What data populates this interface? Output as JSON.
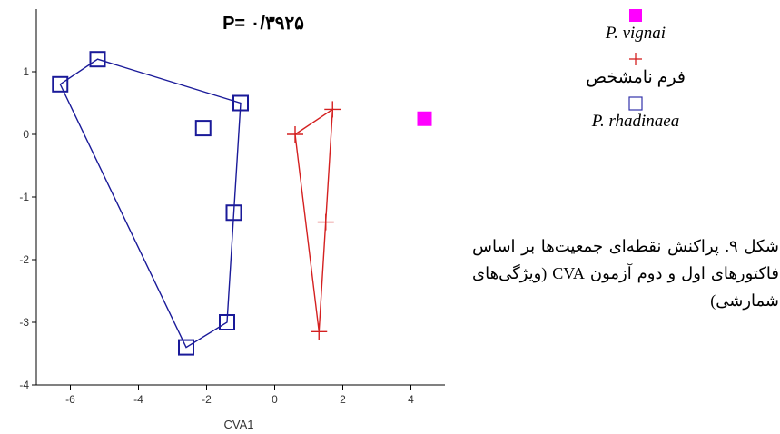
{
  "chart_data": {
    "type": "scatter",
    "title": "P= ۰/۳۹۲۵",
    "xlabel": "CVA1",
    "ylabel": "",
    "xlim": [
      -7,
      5
    ],
    "ylim": [
      -4,
      2
    ],
    "x_ticks": [
      -6,
      -4,
      -2,
      0,
      2,
      4
    ],
    "x_tick_labels": [
      "-6",
      "-4",
      "-2",
      "0",
      "2",
      "4"
    ],
    "y_ticks": [
      -4,
      -3,
      -2,
      -1,
      0,
      1
    ],
    "y_tick_labels": [
      "-4",
      "-3",
      "-2",
      "-1",
      "0",
      "1"
    ],
    "grid": false,
    "legend_position": "right",
    "series": [
      {
        "name": "P. vignai",
        "marker": "filled-square",
        "color": "#ff00ff",
        "points": [
          [
            4.4,
            0.25
          ]
        ],
        "hull": []
      },
      {
        "name": "فرم نامشخص",
        "marker": "plus",
        "color": "#d42020",
        "points": [
          [
            0.6,
            0.0
          ],
          [
            1.7,
            0.4
          ],
          [
            1.5,
            -1.4
          ],
          [
            1.3,
            -3.15
          ]
        ],
        "hull": [
          [
            0.6,
            0.0
          ],
          [
            1.7,
            0.4
          ],
          [
            1.3,
            -3.15
          ]
        ]
      },
      {
        "name": "P. rhadinaea",
        "marker": "open-square",
        "color": "#1a1a99",
        "points": [
          [
            -6.3,
            0.8
          ],
          [
            -5.2,
            1.2
          ],
          [
            -1.0,
            0.5
          ],
          [
            -2.1,
            0.1
          ],
          [
            -1.2,
            -1.25
          ],
          [
            -1.4,
            -3.0
          ],
          [
            -2.6,
            -3.4
          ]
        ],
        "hull": [
          [
            -6.3,
            0.8
          ],
          [
            -5.2,
            1.2
          ],
          [
            -1.0,
            0.5
          ],
          [
            -1.4,
            -3.0
          ],
          [
            -2.6,
            -3.4
          ]
        ]
      }
    ]
  },
  "legend": {
    "items": [
      {
        "label": "P. vignai",
        "color": "#ff00ff",
        "symbol": "filled-square"
      },
      {
        "label": "فرم نامشخص",
        "color": "#d42020",
        "symbol": "plus"
      },
      {
        "label": "P. rhadinaea",
        "color": "#1a1a99",
        "symbol": "open-square"
      }
    ]
  },
  "caption": "شکل ۹. پراکنش نقطه‌ای جمعیت‌ها بر اساس فاکتورهای اول و دوم آزمون CVA (ویژگی‌های شمارشی)"
}
